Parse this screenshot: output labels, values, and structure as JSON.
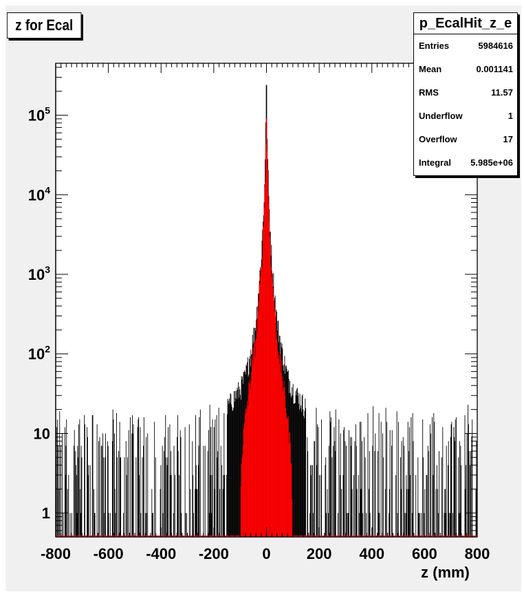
{
  "title": "z for Ecal",
  "stats": {
    "name": "p_EcalHit_z_e",
    "rows": [
      {
        "label": "Entries",
        "value": "5984616"
      },
      {
        "label": "Mean",
        "value": "0.001141"
      },
      {
        "label": "RMS",
        "value": "11.57"
      },
      {
        "label": "Underflow",
        "value": "1"
      },
      {
        "label": "Overflow",
        "value": "17"
      },
      {
        "label": "Integral",
        "value": "5.985e+06"
      }
    ]
  },
  "chart_data": {
    "type": "bar",
    "title": "z for Ecal",
    "xlabel": "z (mm)",
    "ylabel": "",
    "xlim": [
      -800,
      800
    ],
    "ylim": [
      0.5,
      450000
    ],
    "yscale": "log",
    "grid": false,
    "x_ticks": [
      -800,
      -600,
      -400,
      -200,
      0,
      200,
      400,
      600,
      800
    ],
    "x_tick_labels": [
      "-800",
      "-600",
      "-400",
      "-200",
      "0",
      "200",
      "400",
      "600",
      "800"
    ],
    "y_tick_labels": [
      "1",
      "10",
      "10^2",
      "10^3",
      "10^4",
      "10^5"
    ],
    "series": [
      {
        "color": "#000000",
        "profile": {
          "peak_x": 0,
          "peak_y": 240000,
          "x": [
            0,
            5,
            10,
            20,
            30,
            40,
            60,
            80,
            100,
            150,
            200,
            300,
            400,
            500,
            600,
            700,
            800
          ],
          "y": [
            240000,
            25000,
            7000,
            1500,
            600,
            250,
            100,
            50,
            35,
            20,
            12,
            6,
            4,
            3,
            2.5,
            2,
            2
          ]
        }
      },
      {
        "color": "#ff0000",
        "profile": {
          "peak_x": 0,
          "peak_y": 90000,
          "x": [
            0,
            5,
            10,
            20,
            30,
            40,
            60,
            80,
            95,
            100,
            400,
            800
          ],
          "y": [
            90000,
            20000,
            5000,
            1000,
            400,
            150,
            50,
            15,
            5,
            0.5,
            0.5,
            0.5
          ]
        }
      }
    ]
  }
}
